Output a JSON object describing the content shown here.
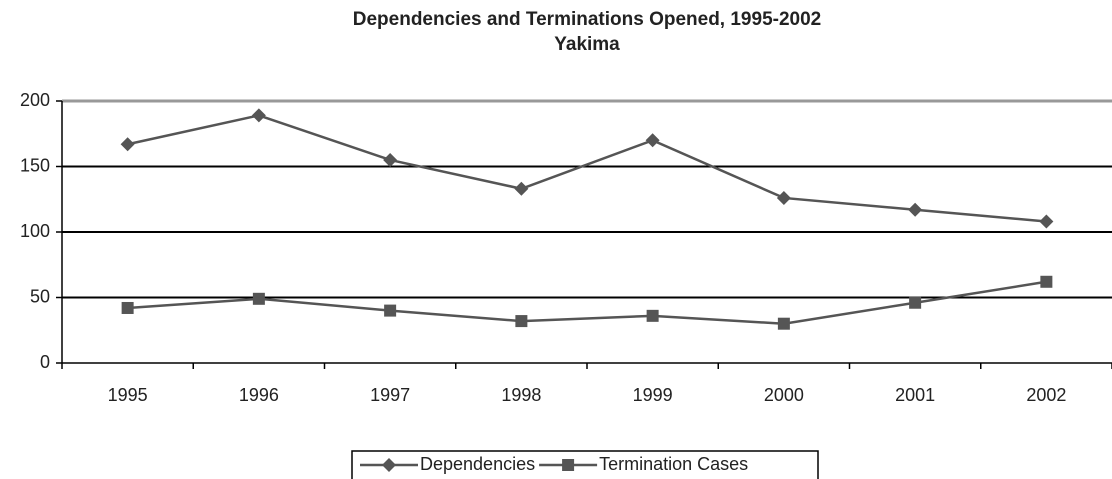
{
  "chart_data": {
    "type": "line",
    "title": "Dependencies and Terminations Opened, 1995-2002",
    "subtitle": "Yakima",
    "categories": [
      "1995",
      "1996",
      "1997",
      "1998",
      "1999",
      "2000",
      "2001",
      "2002"
    ],
    "series": [
      {
        "name": "Dependencies",
        "color": "#555555",
        "marker": "diamond",
        "values": [
          167,
          189,
          155,
          133,
          170,
          126,
          117,
          108
        ]
      },
      {
        "name": "Termination Cases",
        "color": "#555555",
        "marker": "square",
        "values": [
          42,
          49,
          40,
          32,
          36,
          30,
          46,
          62
        ]
      }
    ],
    "ylim": [
      0,
      200
    ],
    "yticks": [
      0,
      50,
      100,
      150,
      200
    ],
    "grid": true,
    "legend": "bottom"
  }
}
